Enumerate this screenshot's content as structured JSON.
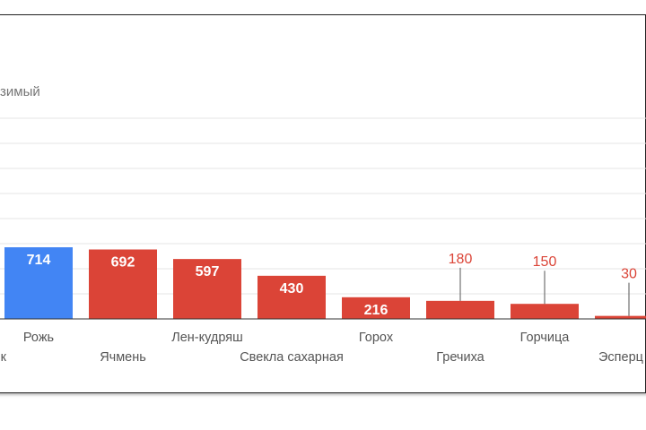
{
  "chart_data": {
    "type": "bar",
    "legend_fragment": "зимый",
    "categories": [
      "к",
      "Рожь",
      "Ячмень",
      "Лен-кудряш",
      "Свекла сахарная",
      "Горох",
      "Гречиха",
      "Горчица",
      "Эсперц"
    ],
    "values": [
      null,
      714,
      692,
      597,
      430,
      216,
      180,
      150,
      30
    ],
    "highlight_color": "#4285f4",
    "bar_color": "#db4437",
    "colors": [
      "#db4437",
      "#4285f4",
      "#db4437",
      "#db4437",
      "#db4437",
      "#db4437",
      "#db4437",
      "#db4437",
      "#db4437"
    ],
    "ylim": [
      0,
      2000
    ],
    "grid_step": 250,
    "grid": true,
    "data_labels": true
  }
}
